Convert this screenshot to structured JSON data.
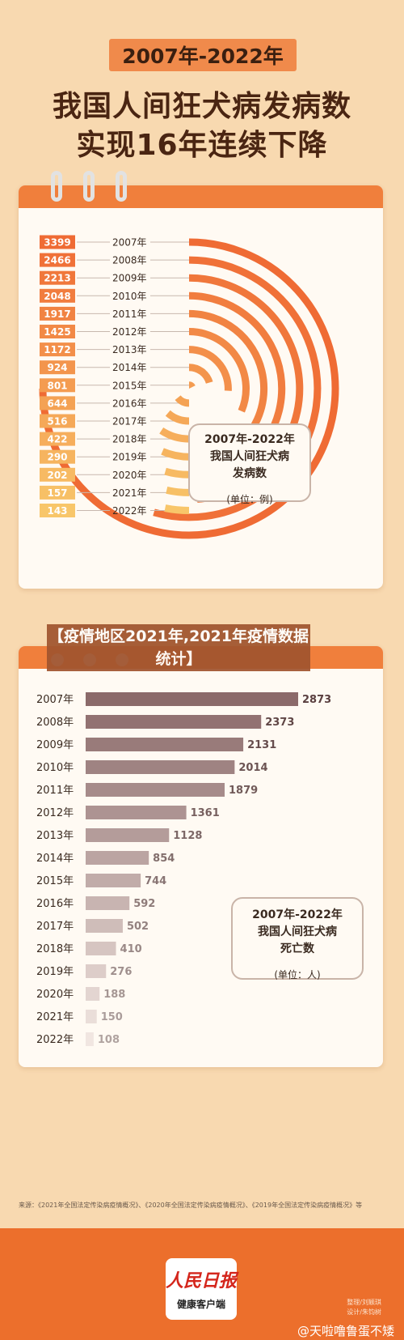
{
  "header": {
    "badge": "2007年-2022年",
    "title_line1": "我国人间狂犬病发病数",
    "title_line2": "实现16年连续下降"
  },
  "chart_data": [
    {
      "type": "radial-bar",
      "title": "2007年-2022年我国人间狂犬病发病数",
      "unit": "(单位：例)",
      "categories": [
        "2007年",
        "2008年",
        "2009年",
        "2010年",
        "2011年",
        "2012年",
        "2013年",
        "2014年",
        "2015年",
        "2016年",
        "2017年",
        "2018年",
        "2019年",
        "2020年",
        "2021年",
        "2022年"
      ],
      "values": [
        3399,
        2466,
        2213,
        2048,
        1917,
        1425,
        1172,
        924,
        801,
        644,
        516,
        422,
        290,
        202,
        157,
        143
      ]
    },
    {
      "type": "bar",
      "title": "2007年-2022年我国人间狂犬病死亡数",
      "unit": "(单位：人)",
      "categories": [
        "2007年",
        "2008年",
        "2009年",
        "2010年",
        "2011年",
        "2012年",
        "2013年",
        "2014年",
        "2015年",
        "2016年",
        "2017年",
        "2018年",
        "2019年",
        "2020年",
        "2021年",
        "2022年"
      ],
      "values": [
        2873,
        2373,
        2131,
        2014,
        1879,
        1361,
        1128,
        854,
        744,
        592,
        502,
        410,
        276,
        188,
        150,
        108
      ]
    }
  ],
  "legend1": {
    "line1": "2007年-2022年",
    "line2": "我国人间狂犬病",
    "line3": "发病数",
    "unit": "(单位：例)"
  },
  "legend2": {
    "line1": "2007年-2022年",
    "line2": "我国人间狂犬病",
    "line3": "死亡数",
    "unit": "(单位：人)"
  },
  "overlay_tag": {
    "line1": "【疫情地区2021年,2021年疫情数据",
    "line2": "统计】"
  },
  "source": "来源：《2021年全国法定传染病疫情概况》、《2020年全国法定传染病疫情概况》、《2019年全国法定传染病疫情概况》等",
  "footer": {
    "logo_main": "人民日报",
    "logo_sub": "健康客户端",
    "credit_line1": "整理/刘颖琪",
    "credit_line2": "设计/朱钧树",
    "watermark": "@天啦噜鲁蛋不矮"
  },
  "colors": {
    "orange_gradient_start": "#ef6b34",
    "orange_gradient_end": "#f8c66a",
    "bar_gradient_start": "#8b6a6a",
    "bar_gradient_end": "#f1e6e1",
    "card_header": "#f07f3c"
  }
}
